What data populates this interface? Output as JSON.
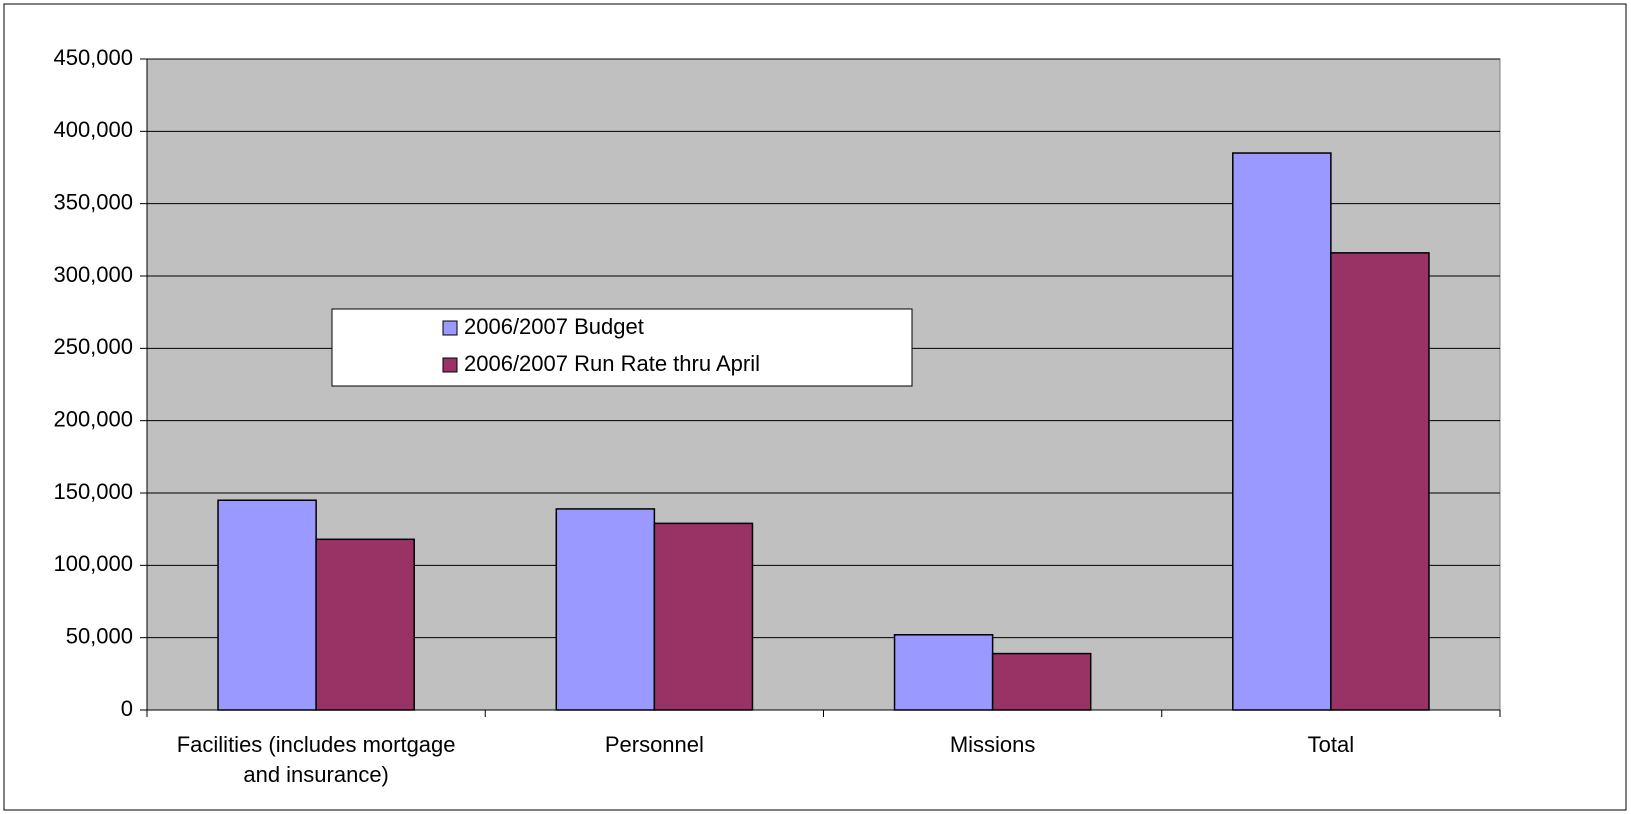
{
  "chart_data": {
    "type": "bar",
    "categories": [
      "Facilities (includes mortgage and insurance)",
      "Personnel",
      "Missions",
      "Total"
    ],
    "series": [
      {
        "name": "2006/2007 Budget",
        "color": "#9999ff",
        "values": [
          145000,
          139000,
          52000,
          385000
        ]
      },
      {
        "name": "2006/2007 Run Rate thru April",
        "color": "#993366",
        "values": [
          118000,
          129000,
          39000,
          316000
        ]
      }
    ],
    "ylim": [
      0,
      450000
    ],
    "yticks": [
      0,
      {
        "value": 50000,
        "label": "50,000"
      },
      {
        "value": 100000,
        "label": "100,000"
      },
      {
        "value": 150000,
        "label": "150,000"
      },
      {
        "value": 200000,
        "label": "200,000"
      },
      {
        "value": 250000,
        "label": "250,000"
      },
      {
        "value": 300000,
        "label": "300,000"
      },
      {
        "value": 350000,
        "label": "350,000"
      },
      {
        "value": 400000,
        "label": "400,000"
      },
      {
        "value": 450000,
        "label": "450,000"
      }
    ],
    "grid": true
  }
}
